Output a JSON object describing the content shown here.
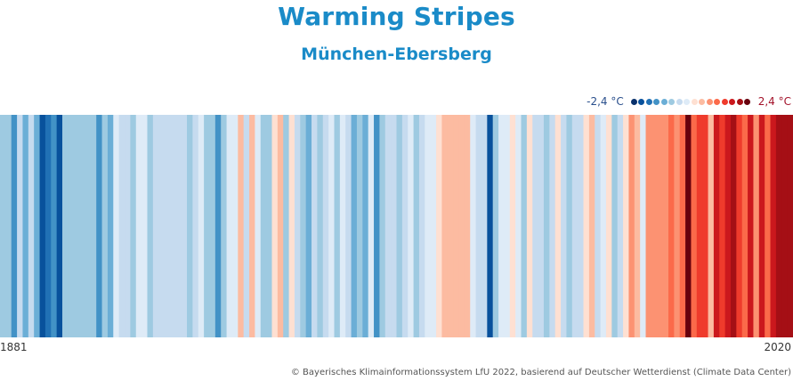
{
  "title": "Warming Stripes",
  "subtitle": "München-Ebersberg",
  "legend": {
    "min_label": "-2,4 °C",
    "max_label": "2,4 °C",
    "colors": [
      "#08306b",
      "#08519c",
      "#2171b5",
      "#4292c6",
      "#6baed6",
      "#9ecae1",
      "#c6dbef",
      "#deebf7",
      "#fee0d2",
      "#fcbba1",
      "#fc9272",
      "#fb6a4a",
      "#ef3b2c",
      "#cb181d",
      "#a50f15",
      "#67000d"
    ]
  },
  "start_year_label": "1881",
  "end_year_label": "2020",
  "credit": "© Bayerisches Klimainformationssystem LfU 2022, basierend auf Deutscher Wetterdienst (Climate Data Center)",
  "chart_data": {
    "type": "heatmap",
    "x_start": 1881,
    "x_end": 2020,
    "vmin": -2.4,
    "vmax": 2.4,
    "anomalies": [
      -0.9,
      -0.7,
      -1.3,
      -0.6,
      -1.2,
      -0.4,
      -1.1,
      -2.0,
      -1.6,
      -1.4,
      -2.0,
      -0.9,
      -0.9,
      -0.8,
      -0.9,
      -0.9,
      -0.9,
      -1.5,
      -0.9,
      -1.1,
      -0.3,
      -0.4,
      -0.5,
      -0.7,
      -0.3,
      -0.2,
      -0.9,
      -0.5,
      -0.5,
      -0.6,
      -0.6,
      -0.6,
      -0.6,
      -0.7,
      -0.6,
      -0.2,
      -0.7,
      -0.7,
      -1.4,
      -0.9,
      -0.3,
      -0.2,
      0.3,
      -0.4,
      0.3,
      -0.1,
      -0.7,
      -0.9,
      0.2,
      0.4,
      -0.9,
      0.1,
      -0.5,
      -0.9,
      -1.1,
      -0.6,
      -0.9,
      -0.5,
      -0.2,
      -0.9,
      -0.3,
      -0.5,
      -1.0,
      -0.9,
      -1.0,
      -0.2,
      -1.3,
      -0.8,
      -0.6,
      -0.4,
      -0.9,
      -0.5,
      -0.3,
      -0.9,
      -0.5,
      -0.2,
      -0.2,
      0.2,
      0.5,
      0.5,
      0.5,
      0.5,
      0.5,
      -0.1,
      -0.4,
      -0.5,
      -2.0,
      -0.9,
      -0.2,
      -0.3,
      0.1,
      -0.2,
      -0.9,
      0.2,
      -0.6,
      -0.6,
      -0.9,
      -0.4,
      0.1,
      -0.6,
      -0.9,
      -0.6,
      -0.5,
      0.2,
      0.3,
      -0.5,
      -0.3,
      0.1,
      -0.8,
      -0.6,
      0.1,
      0.6,
      0.4,
      -0.2,
      0.6,
      0.7,
      0.8,
      0.8,
      0.9,
      0.6,
      1.1,
      2.3,
      0.9,
      1.2,
      1.3,
      0.5,
      1.7,
      1.3,
      1.5,
      1.9,
      1.4,
      1.1,
      1.5,
      0.8,
      1.5,
      0.9,
      1.6,
      1.8,
      1.8,
      2.0
    ]
  }
}
